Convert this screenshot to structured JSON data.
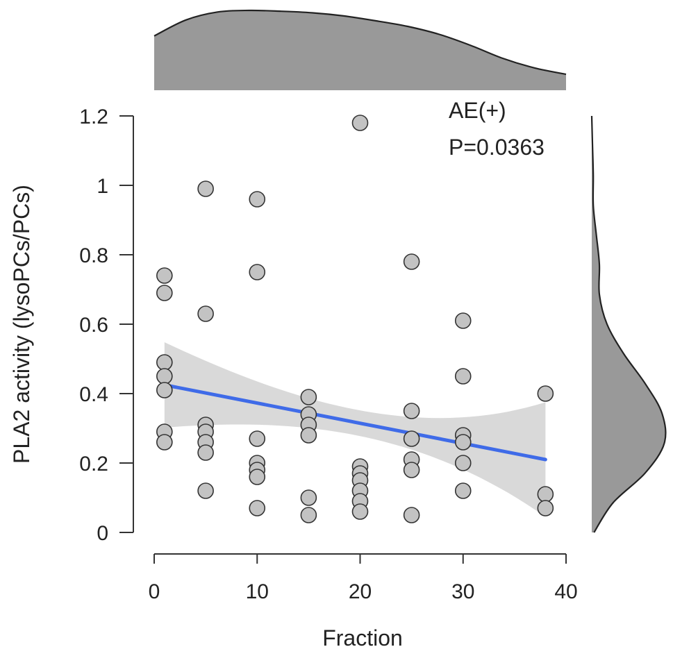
{
  "chart_data": {
    "type": "scatter",
    "xlabel": "Fraction",
    "ylabel": "PLA2 activity (lysoPCs/PCs)",
    "xlim": [
      0,
      40
    ],
    "ylim": [
      0,
      1.2
    ],
    "xticks": [
      0,
      10,
      20,
      30,
      40
    ],
    "xtick_labels": [
      "0",
      "10",
      "20",
      "30",
      "40"
    ],
    "yticks": [
      0,
      0.2,
      0.4,
      0.6,
      0.8,
      1.0,
      1.2
    ],
    "ytick_labels": [
      "0",
      "0.2",
      "0.4",
      "0.6",
      "0.8",
      "1",
      "1.2"
    ],
    "grid": false,
    "annotations": [
      "AE(+)",
      "P=0.0363"
    ],
    "points": [
      {
        "x": 1,
        "y": 0.74
      },
      {
        "x": 1,
        "y": 0.69
      },
      {
        "x": 1,
        "y": 0.49
      },
      {
        "x": 1,
        "y": 0.45
      },
      {
        "x": 1,
        "y": 0.41
      },
      {
        "x": 1,
        "y": 0.29
      },
      {
        "x": 1,
        "y": 0.26
      },
      {
        "x": 5,
        "y": 0.99
      },
      {
        "x": 5,
        "y": 0.63
      },
      {
        "x": 5,
        "y": 0.31
      },
      {
        "x": 5,
        "y": 0.29
      },
      {
        "x": 5,
        "y": 0.26
      },
      {
        "x": 5,
        "y": 0.23
      },
      {
        "x": 5,
        "y": 0.12
      },
      {
        "x": 10,
        "y": 0.96
      },
      {
        "x": 10,
        "y": 0.75
      },
      {
        "x": 10,
        "y": 0.27
      },
      {
        "x": 10,
        "y": 0.2
      },
      {
        "x": 10,
        "y": 0.18
      },
      {
        "x": 10,
        "y": 0.16
      },
      {
        "x": 10,
        "y": 0.07
      },
      {
        "x": 15,
        "y": 0.39
      },
      {
        "x": 15,
        "y": 0.34
      },
      {
        "x": 15,
        "y": 0.31
      },
      {
        "x": 15,
        "y": 0.28
      },
      {
        "x": 15,
        "y": 0.1
      },
      {
        "x": 15,
        "y": 0.05
      },
      {
        "x": 20,
        "y": 1.18
      },
      {
        "x": 20,
        "y": 0.19
      },
      {
        "x": 20,
        "y": 0.17
      },
      {
        "x": 20,
        "y": 0.15
      },
      {
        "x": 20,
        "y": 0.12
      },
      {
        "x": 20,
        "y": 0.09
      },
      {
        "x": 20,
        "y": 0.06
      },
      {
        "x": 25,
        "y": 0.78
      },
      {
        "x": 25,
        "y": 0.35
      },
      {
        "x": 25,
        "y": 0.27
      },
      {
        "x": 25,
        "y": 0.21
      },
      {
        "x": 25,
        "y": 0.18
      },
      {
        "x": 25,
        "y": 0.05
      },
      {
        "x": 30,
        "y": 0.61
      },
      {
        "x": 30,
        "y": 0.45
      },
      {
        "x": 30,
        "y": 0.28
      },
      {
        "x": 30,
        "y": 0.26
      },
      {
        "x": 30,
        "y": 0.2
      },
      {
        "x": 30,
        "y": 0.12
      },
      {
        "x": 38,
        "y": 0.4
      },
      {
        "x": 38,
        "y": 0.11
      },
      {
        "x": 38,
        "y": 0.07
      }
    ],
    "regression": {
      "x": [
        1,
        38
      ],
      "y": [
        0.425,
        0.21
      ],
      "ci_lower": [
        0.3,
        0.045
      ],
      "ci_upper": [
        0.548,
        0.375
      ]
    },
    "x_density_curve": [
      0.68,
      0.88,
      0.98,
      1.0,
      0.99,
      0.97,
      0.93,
      0.87,
      0.8,
      0.7,
      0.56,
      0.4,
      0.28,
      0.2
    ],
    "y_density_curve": [
      0.03,
      0.28,
      0.7,
      0.95,
      0.92,
      0.7,
      0.42,
      0.2,
      0.1,
      0.1,
      0.06,
      0.02,
      0.02,
      0.01,
      0.0
    ],
    "colors": {
      "points": "#c3c3c3",
      "point_edge": "#333333",
      "regression_line": "#3f6be8",
      "confidence_band": "#d9d9d9",
      "density_fill": "#999999",
      "axis": "#333333"
    }
  }
}
